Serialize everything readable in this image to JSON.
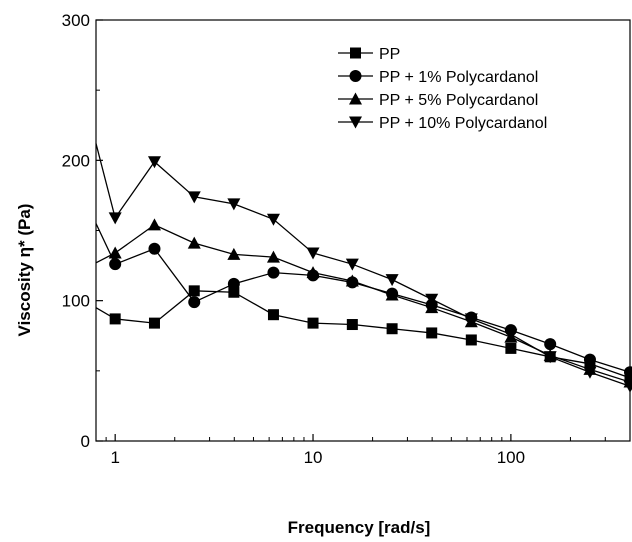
{
  "chart_data": {
    "type": "line",
    "title": "",
    "xlabel": "Frequency [rad/s]",
    "ylabel": "Viscosity η* (Pa)",
    "x_scale": "log",
    "xlim": [
      0.8,
      400
    ],
    "ylim": [
      0,
      300
    ],
    "x_ticks": [
      {
        "value": 1,
        "label": "1"
      },
      {
        "value": 10,
        "label": "10"
      },
      {
        "value": 100,
        "label": "100"
      }
    ],
    "y_ticks": [
      {
        "value": 0,
        "label": "0"
      },
      {
        "value": 100,
        "label": "100"
      },
      {
        "value": 200,
        "label": "200"
      },
      {
        "value": 300,
        "label": "300"
      }
    ],
    "grid": false,
    "legend_position": "top-right",
    "series": [
      {
        "name": "PP",
        "marker": "square",
        "x": [
          0.8,
          1,
          1.58,
          2.51,
          3.98,
          6.31,
          10,
          15.8,
          25.1,
          39.8,
          63.1,
          100,
          158,
          251,
          400
        ],
        "y": [
          95,
          87,
          84,
          107,
          106,
          90,
          84,
          83,
          80,
          77,
          72,
          66,
          60,
          55,
          45
        ]
      },
      {
        "name": "PP + 1% Polycardanol",
        "marker": "circle",
        "x": [
          0.8,
          1,
          1.58,
          2.51,
          3.98,
          6.31,
          10,
          15.8,
          25.1,
          39.8,
          63.1,
          100,
          158,
          251,
          400
        ],
        "y": [
          155,
          126,
          137,
          99,
          112,
          120,
          118,
          113,
          105,
          97,
          88,
          79,
          69,
          58,
          49
        ]
      },
      {
        "name": "PP + 5% Polycardanol",
        "marker": "triangle-up",
        "x": [
          0.8,
          1,
          1.58,
          2.51,
          3.98,
          6.31,
          10,
          15.8,
          25.1,
          39.8,
          63.1,
          100,
          158,
          251,
          400
        ],
        "y": [
          127,
          134,
          154,
          141,
          133,
          131,
          120,
          114,
          104,
          95,
          85,
          74,
          61,
          51,
          42
        ]
      },
      {
        "name": "PP + 10% Polycardanol",
        "marker": "triangle-down",
        "x": [
          0.8,
          1,
          1.58,
          2.51,
          3.98,
          6.31,
          10,
          15.8,
          25.1,
          39.8,
          63.1,
          100,
          158,
          251,
          400
        ],
        "y": [
          212,
          159,
          199,
          174,
          169,
          158,
          134,
          126,
          115,
          101,
          87,
          76,
          60,
          49,
          39
        ]
      }
    ]
  }
}
